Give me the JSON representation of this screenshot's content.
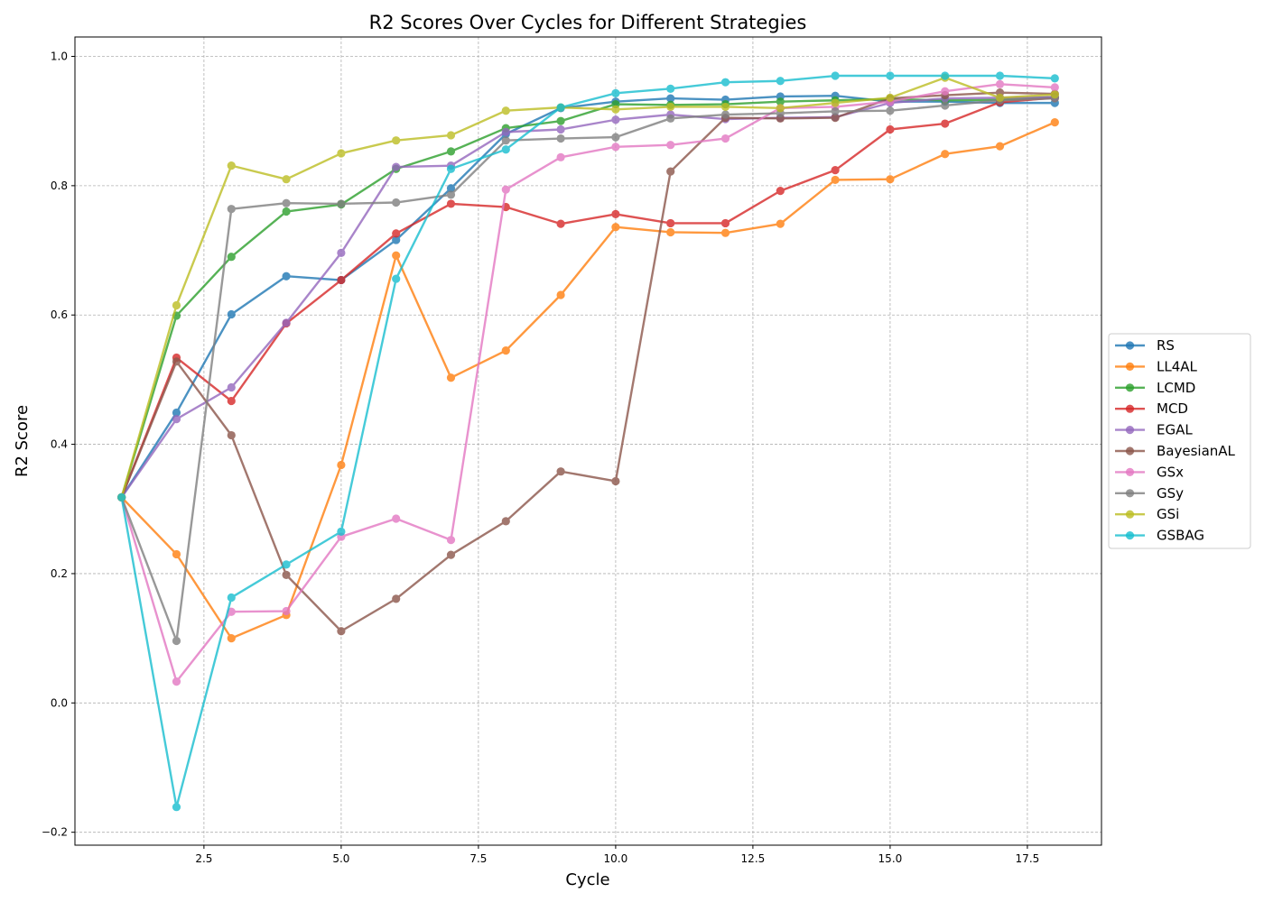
{
  "chart_data": {
    "type": "line",
    "title": "R2 Scores Over Cycles for Different Strategies",
    "xlabel": "Cycle",
    "ylabel": "R2 Score",
    "xlim": [
      0.15,
      18.85
    ],
    "ylim": [
      -0.22,
      1.03
    ],
    "xticks": [
      2.5,
      5.0,
      7.5,
      10.0,
      12.5,
      15.0,
      17.5
    ],
    "xtick_labels": [
      "2.5",
      "5.0",
      "7.5",
      "10.0",
      "12.5",
      "15.0",
      "17.5"
    ],
    "yticks": [
      -0.2,
      0.0,
      0.2,
      0.4,
      0.6,
      0.8,
      1.0
    ],
    "ytick_labels": [
      "−0.2",
      "0.0",
      "0.2",
      "0.4",
      "0.6",
      "0.8",
      "1.0"
    ],
    "grid": true,
    "legend_position": "center-right-outside",
    "x": [
      1,
      2,
      3,
      4,
      5,
      6,
      7,
      8,
      9,
      10,
      11,
      12,
      13,
      14,
      15,
      16,
      17,
      18
    ],
    "series": [
      {
        "name": "RS",
        "color": "#1f77b4",
        "values": [
          0.318,
          0.449,
          0.601,
          0.66,
          0.654,
          0.716,
          0.796,
          0.88,
          0.92,
          0.93,
          0.935,
          0.933,
          0.938,
          0.939,
          0.93,
          0.93,
          0.928,
          0.928
        ]
      },
      {
        "name": "LL4AL",
        "color": "#ff7f0e",
        "values": [
          0.318,
          0.23,
          0.1,
          0.136,
          0.368,
          0.692,
          0.503,
          0.545,
          0.631,
          0.736,
          0.728,
          0.727,
          0.741,
          0.809,
          0.81,
          0.849,
          0.861,
          0.898
        ]
      },
      {
        "name": "LCMD",
        "color": "#2ca02c",
        "values": [
          0.318,
          0.599,
          0.69,
          0.76,
          0.771,
          0.826,
          0.853,
          0.889,
          0.9,
          0.926,
          0.925,
          0.926,
          0.93,
          0.932,
          0.934,
          0.932,
          0.933,
          0.937
        ]
      },
      {
        "name": "MCD",
        "color": "#d62728",
        "values": [
          0.318,
          0.534,
          0.467,
          0.587,
          0.654,
          0.726,
          0.772,
          0.767,
          0.741,
          0.756,
          0.742,
          0.742,
          0.792,
          0.824,
          0.887,
          0.896,
          0.929,
          0.936
        ]
      },
      {
        "name": "EGAL",
        "color": "#9467bd",
        "values": [
          0.318,
          0.439,
          0.488,
          0.588,
          0.696,
          0.829,
          0.831,
          0.883,
          0.887,
          0.902,
          0.91,
          0.903,
          0.905,
          0.906,
          0.928,
          0.935,
          0.936,
          0.937
        ]
      },
      {
        "name": "BayesianAL",
        "color": "#8c564b",
        "values": [
          0.318,
          0.528,
          0.414,
          0.198,
          0.111,
          0.161,
          0.229,
          0.281,
          0.358,
          0.343,
          0.822,
          0.905,
          0.904,
          0.905,
          0.935,
          0.94,
          0.944,
          0.942
        ]
      },
      {
        "name": "GSx",
        "color": "#e377c2",
        "values": [
          0.318,
          0.033,
          0.141,
          0.142,
          0.257,
          0.285,
          0.252,
          0.794,
          0.844,
          0.86,
          0.863,
          0.873,
          0.92,
          0.922,
          0.93,
          0.946,
          0.957,
          0.952
        ]
      },
      {
        "name": "GSy",
        "color": "#7f7f7f",
        "values": [
          0.318,
          0.096,
          0.764,
          0.773,
          0.772,
          0.774,
          0.786,
          0.87,
          0.873,
          0.875,
          0.904,
          0.91,
          0.912,
          0.915,
          0.916,
          0.924,
          0.932,
          0.935
        ]
      },
      {
        "name": "GSi",
        "color": "#bcbd22",
        "values": [
          0.318,
          0.615,
          0.831,
          0.81,
          0.85,
          0.87,
          0.878,
          0.916,
          0.921,
          0.918,
          0.922,
          0.922,
          0.92,
          0.928,
          0.936,
          0.967,
          0.936,
          0.941
        ]
      },
      {
        "name": "GSBAG",
        "color": "#17becf",
        "values": [
          0.318,
          -0.161,
          0.163,
          0.214,
          0.265,
          0.656,
          0.826,
          0.856,
          0.921,
          0.943,
          0.95,
          0.96,
          0.962,
          0.97,
          0.97,
          0.97,
          0.97,
          0.966
        ]
      }
    ]
  }
}
